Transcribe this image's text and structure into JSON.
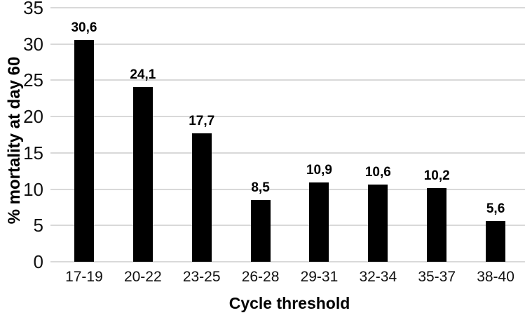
{
  "chart_data": {
    "type": "bar",
    "categories": [
      "17-19",
      "20-22",
      "23-25",
      "26-28",
      "29-31",
      "32-34",
      "35-37",
      "38-40"
    ],
    "values": [
      30.6,
      24.1,
      17.7,
      8.5,
      10.9,
      10.6,
      10.2,
      5.6
    ],
    "value_labels": [
      "30,6",
      "24,1",
      "17,7",
      "8,5",
      "10,9",
      "10,6",
      "10,2",
      "5,6"
    ],
    "title": "",
    "xlabel": "Cycle threshold",
    "ylabel": "% mortality at day 60",
    "ylim": [
      0,
      35
    ],
    "yticks": [
      0,
      5,
      10,
      15,
      20,
      25,
      30,
      35
    ],
    "grid": true,
    "legend_position": "none",
    "decimal_separator": ",",
    "colors": {
      "bar": "#000000",
      "gridline": "#d9d9d9",
      "axis_text": "#111111",
      "label_text": "#000000",
      "background": "#ffffff"
    }
  }
}
